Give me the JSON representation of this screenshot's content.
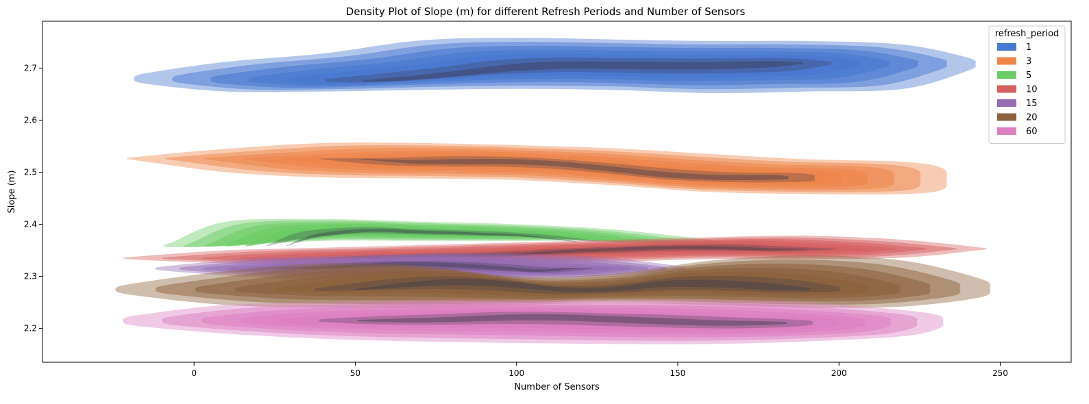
{
  "chart_data": {
    "type": "kde_density",
    "title": "Density Plot of Slope (m) for different Refresh Periods and Number of Sensors",
    "xlabel": "Number of Sensors",
    "ylabel": "Slope (m)",
    "xlim": [
      -47,
      272
    ],
    "ylim": [
      2.135,
      2.79
    ],
    "x_ticks": [
      0,
      50,
      100,
      150,
      200,
      250
    ],
    "y_ticks": [
      2.2,
      2.3,
      2.4,
      2.5,
      2.6,
      2.7
    ],
    "grid": false,
    "legend": {
      "title": "refresh_period",
      "placement": "top-right"
    },
    "series": [
      {
        "name": "1",
        "color": "#4878d0",
        "x": [
          -15,
          10,
          40,
          70,
          100,
          130,
          160,
          190,
          220,
          240
        ],
        "upper": [
          2.69,
          2.712,
          2.728,
          2.753,
          2.758,
          2.755,
          2.752,
          2.752,
          2.745,
          2.72
        ],
        "lower": [
          2.67,
          2.655,
          2.655,
          2.658,
          2.66,
          2.658,
          2.652,
          2.655,
          2.66,
          2.695
        ],
        "ridge": [
          2.675,
          2.68,
          2.69,
          2.7,
          2.705,
          2.705,
          2.705,
          2.705,
          2.708,
          2.71
        ]
      },
      {
        "name": "3",
        "color": "#ee854a",
        "x": [
          -17,
          10,
          40,
          70,
          100,
          130,
          160,
          190,
          220,
          232
        ],
        "upper": [
          2.53,
          2.545,
          2.556,
          2.556,
          2.552,
          2.546,
          2.535,
          2.525,
          2.52,
          2.508
        ],
        "lower": [
          2.522,
          2.5,
          2.49,
          2.488,
          2.485,
          2.475,
          2.462,
          2.458,
          2.458,
          2.466
        ],
        "ridge": [
          2.525,
          2.52,
          2.52,
          2.52,
          2.515,
          2.505,
          2.495,
          2.49,
          2.49,
          2.49
        ]
      },
      {
        "name": "5",
        "color": "#6acc64",
        "x": [
          -7,
          10,
          40,
          70,
          100,
          130,
          160
        ],
        "upper": [
          2.365,
          2.405,
          2.41,
          2.405,
          2.4,
          2.39,
          2.37
        ],
        "lower": [
          2.356,
          2.358,
          2.368,
          2.368,
          2.368,
          2.368,
          2.36
        ],
        "ridge": [
          2.36,
          2.378,
          2.388,
          2.385,
          2.382,
          2.378,
          2.368
        ]
      },
      {
        "name": "10",
        "color": "#d65f5f",
        "x": [
          -18,
          10,
          40,
          70,
          100,
          130,
          160,
          190,
          220,
          243
        ],
        "upper": [
          2.338,
          2.35,
          2.355,
          2.36,
          2.365,
          2.37,
          2.375,
          2.378,
          2.37,
          2.356
        ],
        "lower": [
          2.332,
          2.325,
          2.322,
          2.325,
          2.325,
          2.328,
          2.333,
          2.333,
          2.336,
          2.35
        ],
        "ridge": [
          2.335,
          2.337,
          2.34,
          2.342,
          2.348,
          2.352,
          2.355,
          2.355,
          2.352,
          2.352
        ]
      },
      {
        "name": "15",
        "color": "#956cb4",
        "x": [
          -8,
          20,
          50,
          80,
          110,
          130,
          150
        ],
        "upper": [
          2.32,
          2.335,
          2.34,
          2.345,
          2.342,
          2.335,
          2.32
        ],
        "lower": [
          2.31,
          2.298,
          2.29,
          2.29,
          2.295,
          2.3,
          2.31
        ],
        "ridge": [
          2.315,
          2.32,
          2.325,
          2.322,
          2.315,
          2.31,
          2.315
        ]
      },
      {
        "name": "20",
        "color": "#8c613c",
        "x": [
          -20,
          10,
          40,
          70,
          100,
          130,
          160,
          190,
          220,
          244
        ],
        "upper": [
          2.285,
          2.31,
          2.325,
          2.32,
          2.3,
          2.305,
          2.33,
          2.34,
          2.33,
          2.295
        ],
        "lower": [
          2.265,
          2.245,
          2.24,
          2.24,
          2.245,
          2.25,
          2.245,
          2.24,
          2.242,
          2.26
        ],
        "ridge": [
          2.275,
          2.285,
          2.29,
          2.285,
          2.275,
          2.275,
          2.285,
          2.285,
          2.28,
          2.275
        ]
      },
      {
        "name": "60",
        "color": "#dc7ec0",
        "x": [
          -18,
          10,
          40,
          70,
          100,
          130,
          160,
          190,
          220,
          231
        ],
        "upper": [
          2.225,
          2.245,
          2.25,
          2.255,
          2.255,
          2.255,
          2.255,
          2.25,
          2.235,
          2.225
        ],
        "lower": [
          2.205,
          2.19,
          2.18,
          2.175,
          2.172,
          2.17,
          2.17,
          2.175,
          2.185,
          2.2
        ],
        "ridge": [
          2.215,
          2.215,
          2.218,
          2.222,
          2.222,
          2.218,
          2.214,
          2.21,
          2.21,
          2.21
        ]
      }
    ]
  }
}
